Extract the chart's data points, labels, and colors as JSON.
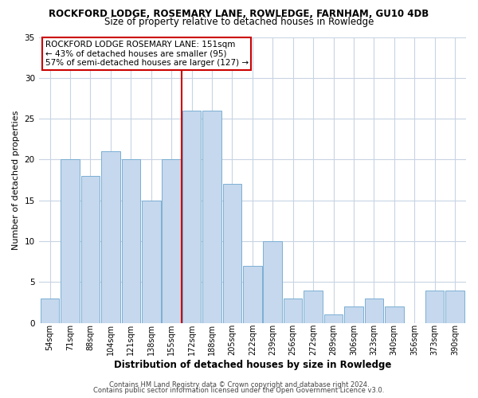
{
  "title": "ROCKFORD LODGE, ROSEMARY LANE, ROWLEDGE, FARNHAM, GU10 4DB",
  "subtitle": "Size of property relative to detached houses in Rowledge",
  "xlabel": "Distribution of detached houses by size in Rowledge",
  "ylabel": "Number of detached properties",
  "bar_labels": [
    "54sqm",
    "71sqm",
    "88sqm",
    "104sqm",
    "121sqm",
    "138sqm",
    "155sqm",
    "172sqm",
    "188sqm",
    "205sqm",
    "222sqm",
    "239sqm",
    "256sqm",
    "272sqm",
    "289sqm",
    "306sqm",
    "323sqm",
    "340sqm",
    "356sqm",
    "373sqm",
    "390sqm"
  ],
  "bar_values": [
    3,
    20,
    18,
    21,
    20,
    15,
    20,
    26,
    26,
    17,
    7,
    10,
    3,
    4,
    1,
    2,
    3,
    2,
    0,
    4,
    4
  ],
  "bar_color": "#c5d8ed",
  "bar_edge_color": "#7bafd4",
  "vline_x_index": 6,
  "vline_color": "#cc0000",
  "ylim": [
    0,
    35
  ],
  "yticks": [
    0,
    5,
    10,
    15,
    20,
    25,
    30,
    35
  ],
  "annotation_line1": "ROCKFORD LODGE ROSEMARY LANE: 151sqm",
  "annotation_line2": "← 43% of detached houses are smaller (95)",
  "annotation_line3": "57% of semi-detached houses are larger (127) →",
  "annotation_box_edge_color": "#cc0000",
  "footer_line1": "Contains HM Land Registry data © Crown copyright and database right 2024.",
  "footer_line2": "Contains public sector information licensed under the Open Government Licence v3.0.",
  "background_color": "#ffffff",
  "grid_color": "#c8d4e3"
}
